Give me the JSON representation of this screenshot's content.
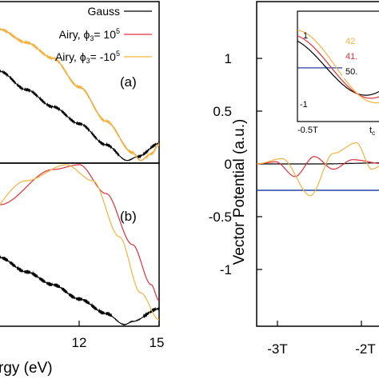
{
  "chart_data": [
    {
      "panel": "(a)",
      "type": "line",
      "xlim": [
        6,
        15
      ],
      "ylim": [
        0,
        1
      ],
      "legend": {
        "placement": "top-right",
        "entries": [
          {
            "label": "Gauss",
            "color": "#000000"
          },
          {
            "label": "Airy, ϕ",
            "sub": "3",
            "suffix": "= 10",
            "sup": "5",
            "color": "#e0303a"
          },
          {
            "label": "Airy, ϕ",
            "sub": "3",
            "suffix": "= -10",
            "sup": "5",
            "color": "#f2b33d"
          }
        ]
      },
      "series": [
        {
          "name": "Gauss",
          "color": "#000000",
          "points": [
            [
              6,
              1.0
            ],
            [
              8,
              0.82
            ],
            [
              9,
              0.7
            ],
            [
              10,
              0.56
            ],
            [
              11,
              0.43
            ],
            [
              12,
              0.3
            ],
            [
              13,
              0.14
            ],
            [
              13.8,
              0.02
            ],
            [
              14.2,
              0.05
            ],
            [
              15,
              0.15
            ]
          ]
        },
        {
          "name": "Airy, ϕ3 = 10^5",
          "color": "#e0303a",
          "points": [
            [
              6,
              1.1
            ],
            [
              9,
              1.02
            ],
            [
              10,
              0.92
            ],
            [
              11,
              0.8
            ],
            [
              12,
              0.58
            ],
            [
              13,
              0.32
            ],
            [
              14,
              0.08
            ],
            [
              14.3,
              0.02
            ],
            [
              14.7,
              0.07
            ],
            [
              15,
              0.14
            ]
          ]
        },
        {
          "name": "Airy, ϕ3 = -10^5",
          "color": "#f2b33d",
          "points": [
            [
              6,
              1.1
            ],
            [
              9,
              1.02
            ],
            [
              10,
              0.92
            ],
            [
              11,
              0.8
            ],
            [
              12,
              0.58
            ],
            [
              13,
              0.32
            ],
            [
              14,
              0.08
            ],
            [
              14.3,
              0.02
            ],
            [
              14.7,
              0.07
            ],
            [
              15,
              0.14
            ]
          ]
        }
      ]
    },
    {
      "panel": "(b)",
      "type": "line",
      "xlim": [
        6,
        15
      ],
      "ylim": [
        0,
        1
      ],
      "xticks": [
        "12",
        "15"
      ],
      "xlabel_partial": "rgy (eV)",
      "series": [
        {
          "name": "Gauss",
          "color": "#000000",
          "points": [
            [
              6,
              0.6
            ],
            [
              8,
              0.5
            ],
            [
              9,
              0.42
            ],
            [
              10,
              0.33
            ],
            [
              11,
              0.25
            ],
            [
              12,
              0.16
            ],
            [
              13,
              0.07
            ],
            [
              13.7,
              0.0
            ],
            [
              14,
              0.02
            ],
            [
              15,
              0.1
            ]
          ]
        },
        {
          "name": "Airy, ϕ3 = 10^5",
          "color": "#e0303a",
          "points": [
            [
              6,
              0.1
            ],
            [
              7,
              0.45
            ],
            [
              9,
              0.75
            ],
            [
              11,
              0.97
            ],
            [
              12,
              1.0
            ],
            [
              13,
              0.82
            ],
            [
              14,
              0.5
            ],
            [
              14.7,
              0.25
            ],
            [
              15,
              0.15
            ]
          ]
        },
        {
          "name": "Airy, ϕ3 = -10^5",
          "color": "#f2b33d",
          "points": [
            [
              6,
              0.25
            ],
            [
              8,
              0.6
            ],
            [
              10,
              0.9
            ],
            [
              11.5,
              1.0
            ],
            [
              12.5,
              0.9
            ],
            [
              13.5,
              0.55
            ],
            [
              14.3,
              0.2
            ],
            [
              15,
              0.03
            ]
          ]
        }
      ]
    },
    {
      "panel": "right",
      "type": "line",
      "ylabel": "Vector Potential (a.u.)",
      "ylim": [
        -1.5,
        1.5
      ],
      "xticks": [
        "-3T",
        "-2T"
      ],
      "yticks": [
        "1",
        "0.5",
        "0",
        "-0.5",
        "-1"
      ],
      "series": [
        {
          "name": "reference level",
          "color": "#2b3fa8",
          "points": [
            [
              0,
              -0.25
            ],
            [
              1,
              -0.25
            ]
          ]
        },
        {
          "name": "Gauss",
          "color": "#000000",
          "points": [
            [
              0,
              0
            ],
            [
              0.5,
              0.0
            ],
            [
              1,
              0.01
            ]
          ]
        },
        {
          "name": "Airy, ϕ3 = 10^5",
          "color": "#e0303a",
          "points": [
            [
              0,
              0
            ],
            [
              0.15,
              0.02
            ],
            [
              0.3,
              -0.12
            ],
            [
              0.45,
              0.07
            ],
            [
              0.6,
              -0.05
            ],
            [
              0.75,
              0.04
            ],
            [
              1,
              0
            ]
          ]
        },
        {
          "name": "Airy, ϕ3 = -10^5",
          "color": "#f2b33d",
          "points": [
            [
              0,
              0
            ],
            [
              0.2,
              0.05
            ],
            [
              0.42,
              -0.3
            ],
            [
              0.6,
              0.1
            ],
            [
              0.78,
              0.2
            ],
            [
              0.9,
              -0.05
            ],
            [
              1,
              0
            ]
          ]
        }
      ],
      "inset": {
        "xticks": [
          "-0.5T",
          "t"
        ],
        "xtick_sub": "c",
        "yticks": [
          "1",
          "-1"
        ],
        "labels": [
          {
            "text": "42",
            "color": "#f2b33d"
          },
          {
            "text": "41.",
            "color": "#e0303a"
          },
          {
            "text": "50.",
            "color": "#000000"
          }
        ]
      }
    }
  ]
}
